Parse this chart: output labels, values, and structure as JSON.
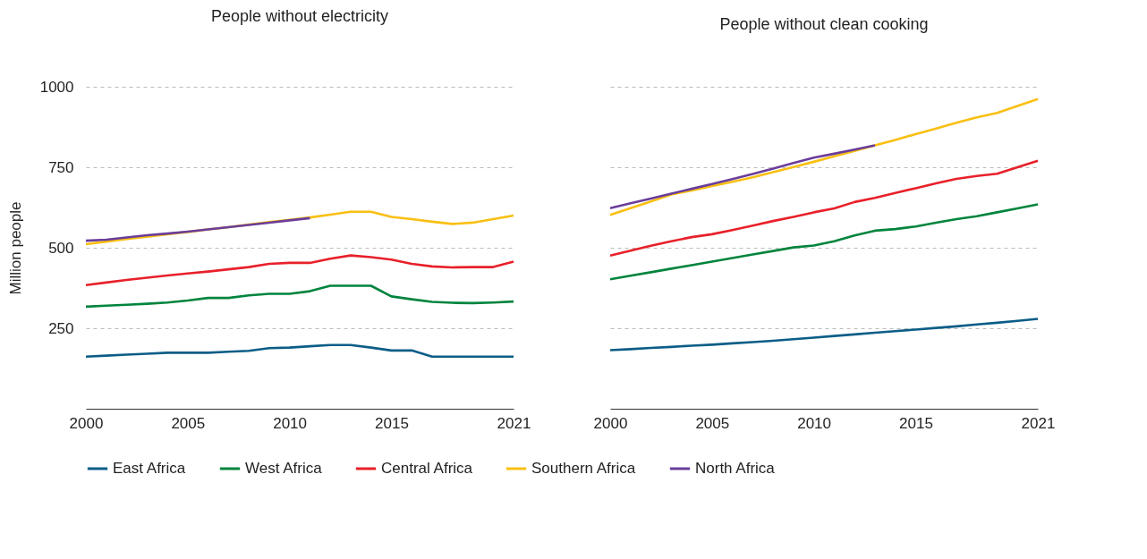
{
  "chart_data": [
    {
      "type": "line",
      "title": "People without electricity",
      "ylabel": "Million people",
      "x": [
        2000,
        2001,
        2002,
        2003,
        2004,
        2005,
        2006,
        2007,
        2008,
        2009,
        2010,
        2011,
        2012,
        2013,
        2014,
        2015,
        2016,
        2017,
        2018,
        2019,
        2020,
        2021
      ],
      "xlim": [
        2000,
        2021
      ],
      "xticks": [
        2000,
        2005,
        2010,
        2015,
        2021
      ],
      "ylim": [
        0,
        1000
      ],
      "yticks": [
        250,
        500,
        750,
        1000
      ],
      "grid": "y",
      "legend": "bottom",
      "marker": "none",
      "line_style": "solid",
      "series": [
        {
          "name": "East Africa",
          "color": "#0b5d87",
          "values": [
            162,
            165,
            168,
            171,
            174,
            174,
            174,
            177,
            180,
            188,
            190,
            194,
            198,
            198,
            190,
            181,
            181,
            162,
            162,
            162,
            162,
            162
          ]
        },
        {
          "name": "West Africa",
          "color": "#00843d",
          "values": [
            317,
            320,
            323,
            326,
            330,
            336,
            344,
            344,
            352,
            357,
            357,
            365,
            382,
            382,
            382,
            349,
            340,
            332,
            329,
            328,
            330,
            333
          ]
        },
        {
          "name": "Central Africa",
          "color": "#e8202a",
          "values": [
            384,
            392,
            400,
            407,
            414,
            420,
            426,
            433,
            440,
            450,
            453,
            453,
            466,
            476,
            471,
            463,
            450,
            442,
            439,
            440,
            440,
            457
          ]
        },
        {
          "name": "Southern Africa",
          "color": "#f9bf12",
          "values": [
            511,
            519,
            527,
            534,
            542,
            549,
            557,
            564,
            572,
            580,
            587,
            594,
            603,
            612,
            612,
            596,
            589,
            581,
            574,
            578,
            589,
            600
          ]
        },
        {
          "name": "North Africa",
          "color": "#6a3d9a",
          "values": [
            522,
            525,
            532,
            539,
            544,
            550,
            557,
            564,
            571,
            578,
            585,
            592,
            null,
            null,
            null,
            null,
            null,
            null,
            null,
            null,
            null,
            null
          ]
        }
      ]
    },
    {
      "type": "line",
      "title": "People without clean cooking",
      "x": [
        2000,
        2001,
        2002,
        2003,
        2004,
        2005,
        2006,
        2007,
        2008,
        2009,
        2010,
        2011,
        2012,
        2013,
        2014,
        2015,
        2016,
        2017,
        2018,
        2019,
        2020,
        2021
      ],
      "xlim": [
        2000,
        2021
      ],
      "xticks": [
        2000,
        2005,
        2010,
        2015,
        2021
      ],
      "ylim": [
        0,
        1000
      ],
      "yticks": [
        250,
        500,
        750,
        1000
      ],
      "grid": "y",
      "legend": "bottom",
      "marker": "none",
      "line_style": "solid",
      "tick_labels": "x",
      "series": [
        {
          "name": "East Africa",
          "color": "#0b5d87",
          "values": [
            182,
            185,
            189,
            192,
            196,
            199,
            203,
            207,
            211,
            216,
            221,
            226,
            231,
            236,
            241,
            246,
            251,
            256,
            262,
            267,
            273,
            279
          ]
        },
        {
          "name": "West Africa",
          "color": "#00843d",
          "values": [
            402,
            413,
            424,
            435,
            446,
            457,
            468,
            479,
            490,
            501,
            507,
            520,
            538,
            553,
            558,
            566,
            578,
            589,
            598,
            610,
            622,
            635
          ]
        },
        {
          "name": "Central Africa",
          "color": "#e8202a",
          "values": [
            476,
            491,
            506,
            520,
            533,
            542,
            555,
            569,
            583,
            596,
            610,
            622,
            642,
            655,
            670,
            685,
            700,
            714,
            723,
            730,
            750,
            770
          ]
        },
        {
          "name": "Southern Africa",
          "color": "#f9bf12",
          "values": [
            602,
            623,
            644,
            665,
            678,
            692,
            705,
            719,
            735,
            751,
            767,
            784,
            801,
            818,
            835,
            853,
            870,
            888,
            905,
            919,
            940,
            962
          ]
        },
        {
          "name": "North Africa",
          "color": "#6a3d9a",
          "values": [
            623,
            638,
            653,
            668,
            683,
            698,
            713,
            729,
            746,
            763,
            780,
            792,
            805,
            818,
            null,
            null,
            null,
            null,
            null,
            null,
            null,
            null
          ]
        }
      ]
    }
  ]
}
